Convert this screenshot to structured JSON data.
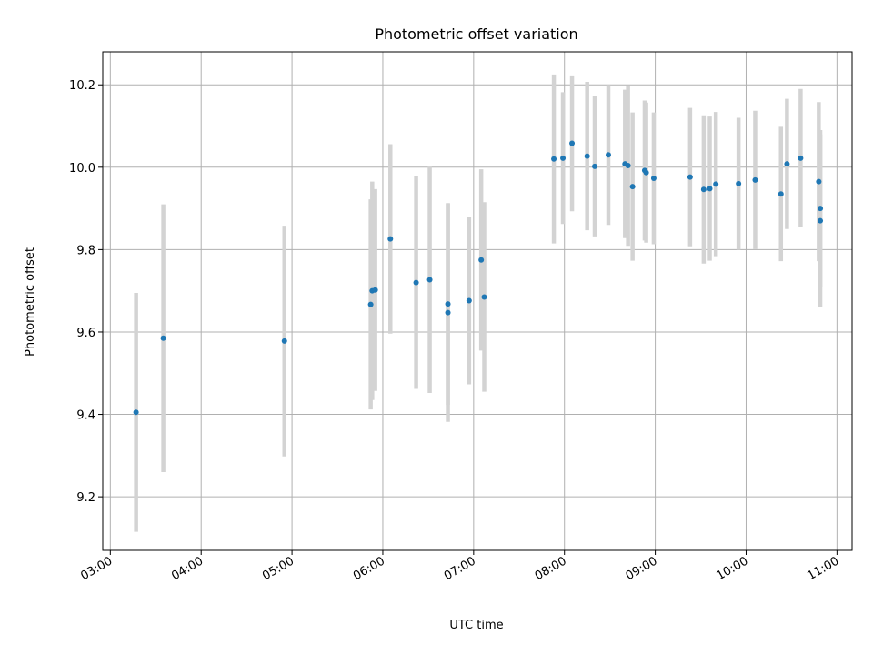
{
  "chart_data": {
    "type": "scatter",
    "title": "Photometric offset variation",
    "xlabel": "UTC time",
    "ylabel": "Photometric offset",
    "xlim": [
      "02:55",
      "11:10"
    ],
    "ylim": [
      9.07,
      10.28
    ],
    "x_ticks": [
      "03:00",
      "04:00",
      "05:00",
      "06:00",
      "07:00",
      "08:00",
      "09:00",
      "10:00",
      "11:00"
    ],
    "y_ticks": [
      9.2,
      9.4,
      9.6,
      9.8,
      10.0,
      10.2
    ],
    "grid": true,
    "colors": {
      "point": "#1f77b4",
      "errorbar": "#d3d3d3"
    },
    "points": [
      {
        "t": "03:17",
        "y": 9.405,
        "err": 0.29
      },
      {
        "t": "03:35",
        "y": 9.585,
        "err": 0.325
      },
      {
        "t": "04:55",
        "y": 9.578,
        "err": 0.28
      },
      {
        "t": "05:52",
        "y": 9.667,
        "err": 0.255
      },
      {
        "t": "05:53",
        "y": 9.7,
        "err": 0.265
      },
      {
        "t": "05:55",
        "y": 9.702,
        "err": 0.245
      },
      {
        "t": "06:05",
        "y": 9.826,
        "err": 0.23
      },
      {
        "t": "06:22",
        "y": 9.72,
        "err": 0.258
      },
      {
        "t": "06:31",
        "y": 9.727,
        "err": 0.275
      },
      {
        "t": "06:43",
        "y": 9.668,
        "err": 0.245
      },
      {
        "t": "06:43",
        "y": 9.647,
        "err": 0.265
      },
      {
        "t": "06:57",
        "y": 9.676,
        "err": 0.203
      },
      {
        "t": "07:05",
        "y": 9.775,
        "err": 0.22
      },
      {
        "t": "07:07",
        "y": 9.685,
        "err": 0.23
      },
      {
        "t": "07:53",
        "y": 10.02,
        "err": 0.205
      },
      {
        "t": "07:59",
        "y": 10.022,
        "err": 0.16
      },
      {
        "t": "08:05",
        "y": 10.058,
        "err": 0.165
      },
      {
        "t": "08:15",
        "y": 10.027,
        "err": 0.18
      },
      {
        "t": "08:20",
        "y": 10.002,
        "err": 0.17
      },
      {
        "t": "08:29",
        "y": 10.03,
        "err": 0.17
      },
      {
        "t": "08:40",
        "y": 10.008,
        "err": 0.18
      },
      {
        "t": "08:42",
        "y": 10.004,
        "err": 0.195
      },
      {
        "t": "08:45",
        "y": 9.953,
        "err": 0.18
      },
      {
        "t": "08:53",
        "y": 9.992,
        "err": 0.17
      },
      {
        "t": "08:54",
        "y": 9.987,
        "err": 0.17
      },
      {
        "t": "08:59",
        "y": 9.973,
        "err": 0.16
      },
      {
        "t": "09:23",
        "y": 9.976,
        "err": 0.168
      },
      {
        "t": "09:32",
        "y": 9.946,
        "err": 0.18
      },
      {
        "t": "09:36",
        "y": 9.948,
        "err": 0.175
      },
      {
        "t": "09:40",
        "y": 9.959,
        "err": 0.175
      },
      {
        "t": "09:55",
        "y": 9.96,
        "err": 0.16
      },
      {
        "t": "10:06",
        "y": 9.969,
        "err": 0.168
      },
      {
        "t": "10:23",
        "y": 9.935,
        "err": 0.163
      },
      {
        "t": "10:27",
        "y": 10.008,
        "err": 0.158
      },
      {
        "t": "10:36",
        "y": 10.022,
        "err": 0.168
      },
      {
        "t": "10:48",
        "y": 9.965,
        "err": 0.193
      },
      {
        "t": "10:49",
        "y": 9.9,
        "err": 0.19
      },
      {
        "t": "10:49",
        "y": 9.87,
        "err": 0.21
      }
    ]
  }
}
